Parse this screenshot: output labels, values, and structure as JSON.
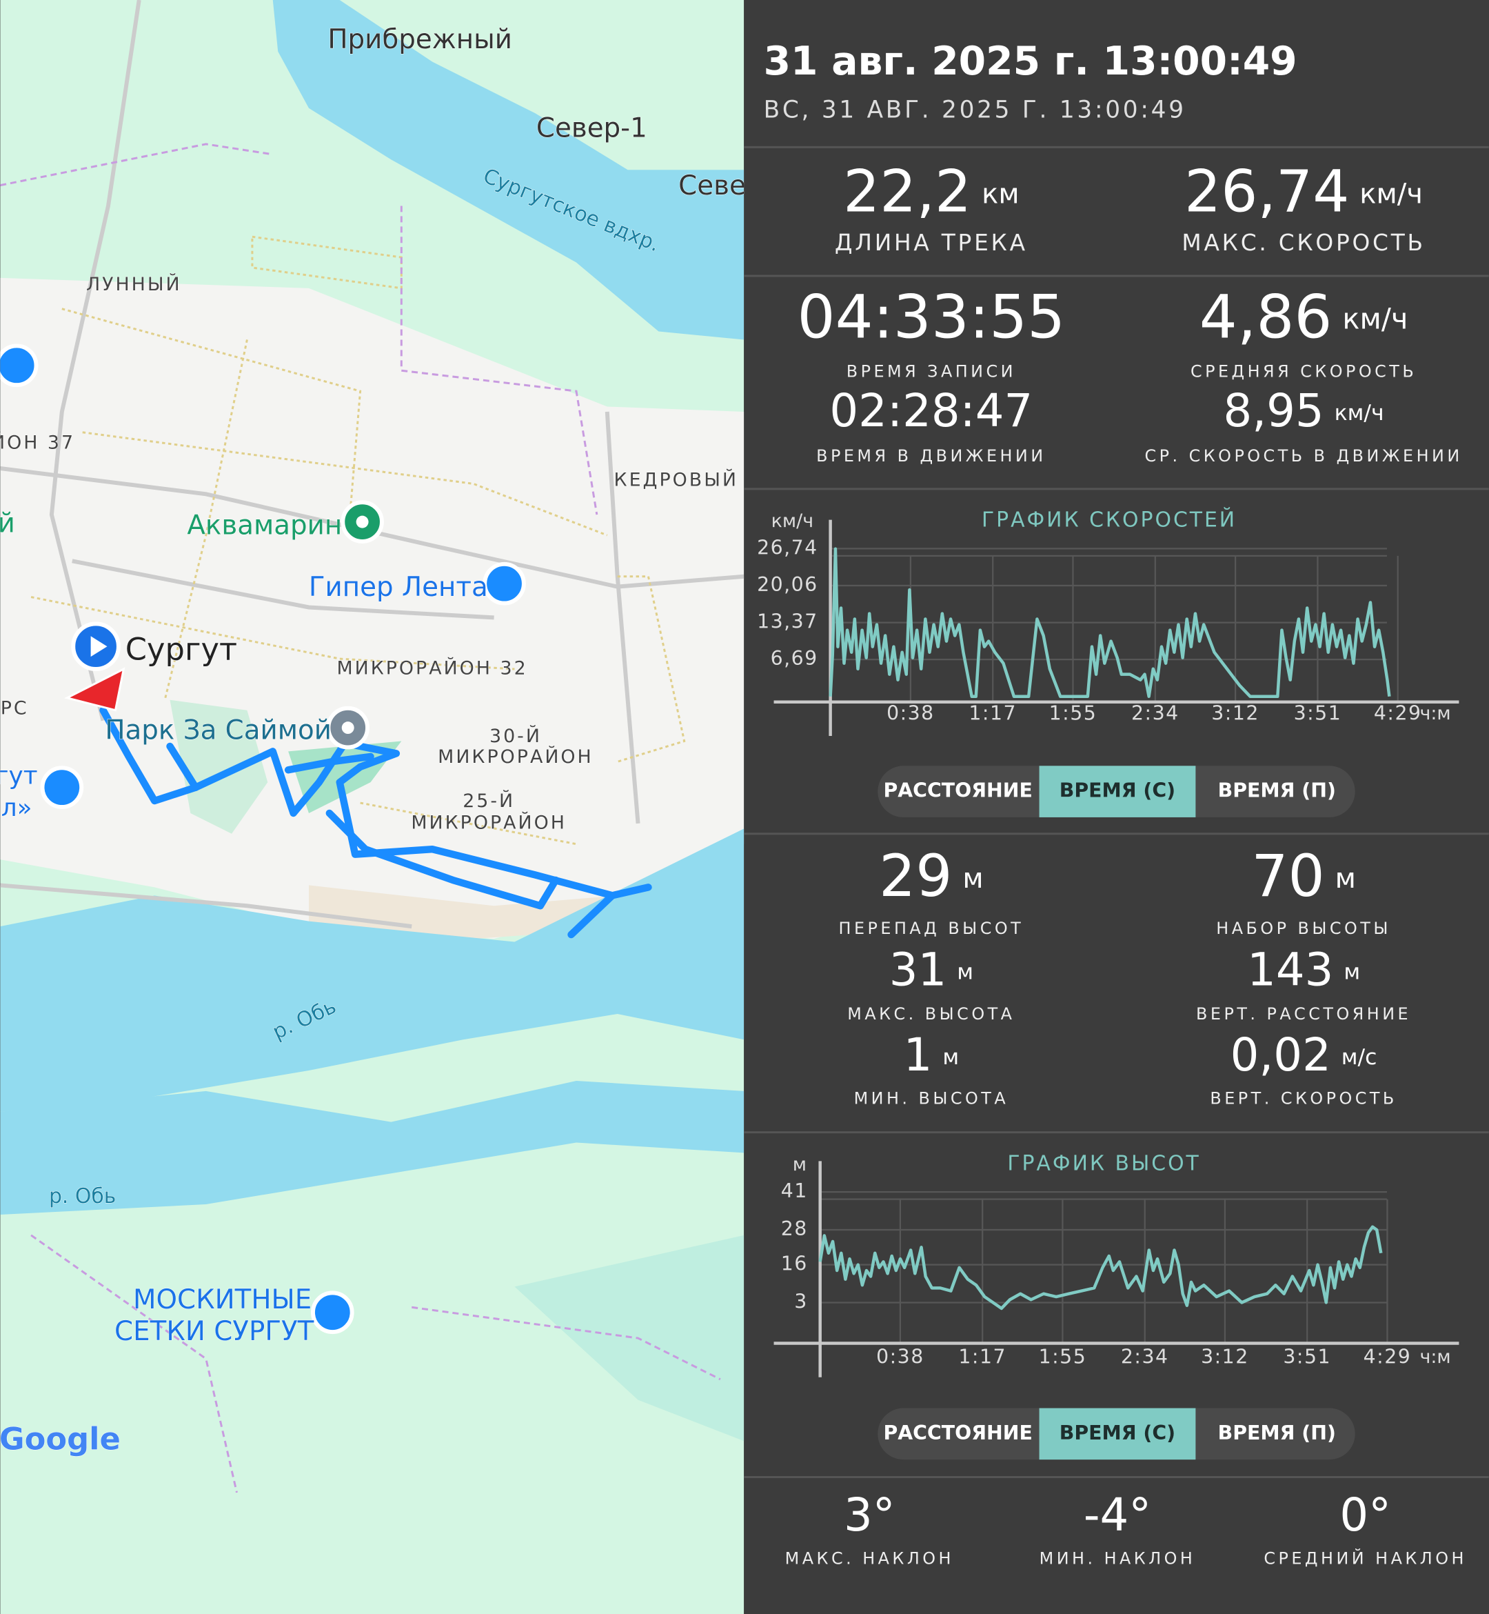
{
  "map": {
    "labels": [
      "Прибрежный",
      "Север-1",
      "Севе",
      "Сургутское вдхр.",
      "ЛУННЫЙ",
      "ЙОН 37",
      "КЕДРОВЫЙ",
      "й",
      "Аквамарин",
      "Гипер Лента",
      "Сургут",
      "МИКРОРАЙОН 32",
      "РС",
      "Парк За Саймой",
      "30-Й",
      "МИКРОРАЙОН",
      "гут",
      "25-Й",
      "МИКРОРАЙОН",
      "л»",
      "р. Обь",
      "р. Обь",
      "МОСКИТНЫЕ",
      "СЕТКИ СУРГУТ",
      "Google"
    ]
  },
  "header": {
    "title": "31 авг. 2025 г. 13:00:49",
    "subtitle": "ВС, 31 АВГ. 2025 Г. 13:00:49"
  },
  "track_stats": [
    {
      "value": "22,2",
      "unit": "км",
      "label": "ДЛИНА ТРЕКА"
    },
    {
      "value": "26,74",
      "unit": "км/ч",
      "label": "МАКС. СКОРОСТЬ"
    },
    {
      "value": "04:33:55",
      "label": "ВРЕМЯ ЗАПИСИ"
    },
    {
      "value": "4,86",
      "unit": "км/ч",
      "label": "СРЕДНЯЯ СКОРОСТЬ"
    },
    {
      "value": "02:28:47",
      "label": "ВРЕМЯ В ДВИЖЕНИИ"
    },
    {
      "value": "8,95",
      "unit": "км/ч",
      "label": "СР. СКОРОСТЬ В ДВИЖЕНИИ"
    }
  ],
  "elevation_stats": [
    {
      "value": "29",
      "unit": "м",
      "label": "ПЕРЕПАД ВЫСОТ"
    },
    {
      "value": "70",
      "unit": "м",
      "label": "НАБОР ВЫСОТЫ"
    },
    {
      "value": "31",
      "unit": "м",
      "label": "МАКС. ВЫСОТА"
    },
    {
      "value": "143",
      "unit": "м",
      "label": "ВЕРТ. РАССТОЯНИЕ"
    },
    {
      "value": "1",
      "unit": "м",
      "label": "МИН. ВЫСОТА"
    },
    {
      "value": "0,02",
      "unit": "м/с",
      "label": "ВЕРТ. СКОРОСТЬ"
    }
  ],
  "slope_stats": [
    {
      "value": "3°",
      "label": "МАКС. НАКЛОН"
    },
    {
      "value": "-4°",
      "label": "МИН. НАКЛОН"
    },
    {
      "value": "0°",
      "label": "СРЕДНИЙ НАКЛОН"
    }
  ],
  "controls": [
    {
      "options": [
        "РАССТОЯНИЕ",
        "ВРЕМЯ (С)",
        "ВРЕМЯ (П)"
      ],
      "selected": 1
    },
    {
      "options": [
        "РАССТОЯНИЕ",
        "ВРЕМЯ (С)",
        "ВРЕМЯ (П)"
      ],
      "selected": 1
    }
  ],
  "chart_data": [
    {
      "type": "line",
      "title": "ГРАФИК СКОРОСТЕЙ",
      "y_label": "км/ч",
      "x_label": "ч:м",
      "color": "#80cbc4",
      "grid": true,
      "xlim": [
        0,
        298
      ],
      "ylim": [
        -1,
        26.74
      ],
      "xticks": [
        {
          "value": 38,
          "label": "0:38"
        },
        {
          "value": 77,
          "label": "1:17"
        },
        {
          "value": 115,
          "label": "1:55"
        },
        {
          "value": 154,
          "label": "2:34"
        },
        {
          "value": 192,
          "label": "3:12"
        },
        {
          "value": 231,
          "label": "3:51"
        },
        {
          "value": 269,
          "label": "4:29"
        }
      ],
      "yticks": [
        {
          "value": 6.69,
          "label": "6,69"
        },
        {
          "value": 13.37,
          "label": "13,37"
        },
        {
          "value": 20.06,
          "label": "20,06"
        },
        {
          "value": 26.74,
          "label": "26,74"
        }
      ],
      "x": [
        0,
        1,
        2.4,
        3.5,
        5,
        6.5,
        8,
        10,
        11.5,
        13,
        15,
        17,
        18.5,
        20,
        22,
        24,
        26,
        28,
        30,
        32,
        34,
        36,
        37.5,
        39,
        41,
        43,
        45,
        47,
        49,
        51,
        53,
        55,
        57,
        59,
        61,
        63,
        65,
        67,
        69,
        71,
        73,
        75,
        78,
        82,
        87,
        94,
        98,
        101,
        104,
        109,
        122,
        124,
        126,
        128,
        130,
        133,
        136,
        138,
        142,
        147,
        149,
        151,
        153,
        155,
        157,
        159,
        161,
        163,
        165,
        167,
        169,
        171,
        173,
        175,
        177,
        179,
        182,
        188,
        194,
        199,
        212,
        214,
        216,
        218,
        220,
        222,
        224,
        226,
        228,
        230,
        232,
        234,
        236,
        238,
        240,
        242,
        244,
        246,
        248,
        250,
        252,
        254,
        256,
        258,
        260,
        262,
        264,
        265
      ],
      "values": [
        0,
        7.5,
        26.7,
        9,
        16,
        6,
        12,
        8,
        14,
        5,
        12,
        7,
        15,
        9,
        13,
        6,
        11,
        4,
        9,
        3,
        8,
        4,
        19.3,
        7,
        12,
        5,
        14,
        8,
        13,
        9,
        15,
        10,
        14,
        11,
        13,
        8,
        4,
        0,
        0,
        12,
        9,
        10,
        8,
        6,
        0,
        0,
        14,
        11,
        5,
        0,
        0,
        9,
        4,
        11,
        6,
        10,
        7,
        4,
        4,
        3,
        4,
        0,
        5,
        3,
        9,
        6,
        12,
        8,
        13,
        7,
        14,
        9,
        15,
        10,
        13,
        11,
        8,
        5,
        2,
        0,
        0,
        12,
        7,
        3,
        10,
        14,
        8,
        16,
        10,
        13,
        9,
        15,
        8,
        13,
        9,
        12,
        7,
        11,
        6,
        14,
        10,
        13,
        17,
        9,
        12,
        8,
        3,
        0
      ]
    },
    {
      "type": "line",
      "title": "ГРАФИК ВЫСОТ",
      "y_label": "м",
      "x_label": "ч:м",
      "color": "#80cbc4",
      "grid": true,
      "xlim": [
        0,
        303
      ],
      "ylim": [
        -11,
        41
      ],
      "xticks": [
        {
          "value": 38,
          "label": "0:38"
        },
        {
          "value": 77,
          "label": "1:17"
        },
        {
          "value": 115,
          "label": "1:55"
        },
        {
          "value": 154,
          "label": "2:34"
        },
        {
          "value": 192,
          "label": "3:12"
        },
        {
          "value": 231,
          "label": "3:51"
        },
        {
          "value": 269,
          "label": "4:29"
        }
      ],
      "yticks": [
        3,
        16,
        28,
        41
      ],
      "x": [
        0,
        2,
        4,
        6,
        8,
        10,
        12,
        14,
        16,
        18,
        20,
        22,
        24,
        26,
        28,
        30,
        32,
        34,
        36,
        38,
        40,
        43,
        45,
        48,
        50,
        53,
        57,
        62,
        66,
        70,
        74,
        78,
        82,
        86,
        90,
        95,
        100,
        106,
        112,
        118,
        124,
        130,
        134,
        137,
        139,
        142,
        146,
        150,
        153,
        156,
        158,
        160,
        163,
        166,
        168,
        170,
        172,
        174,
        176,
        178,
        182,
        188,
        194,
        200,
        206,
        212,
        216,
        220,
        224,
        228,
        232,
        234,
        236,
        238,
        240,
        242,
        244,
        246,
        248,
        250,
        252,
        254,
        256,
        258,
        260,
        262,
        264,
        266
      ],
      "values": [
        17,
        26,
        20,
        24,
        14,
        20,
        11,
        18,
        13,
        16,
        9,
        14,
        12,
        20,
        15,
        17,
        13,
        19,
        14,
        18,
        15,
        21,
        13,
        22,
        12,
        8,
        8,
        7,
        15,
        11,
        9,
        5,
        3,
        1,
        4,
        6,
        4,
        6,
        5,
        6,
        7,
        8,
        15,
        19,
        14,
        17,
        8,
        12,
        7,
        21,
        14,
        18,
        10,
        13,
        21,
        16,
        6,
        2,
        10,
        7,
        9,
        5,
        7,
        3,
        5,
        6,
        9,
        6,
        12,
        7,
        14,
        9,
        16,
        10,
        3,
        15,
        8,
        17,
        11,
        16,
        12,
        18,
        15,
        22,
        27,
        29,
        28,
        20
      ]
    }
  ]
}
